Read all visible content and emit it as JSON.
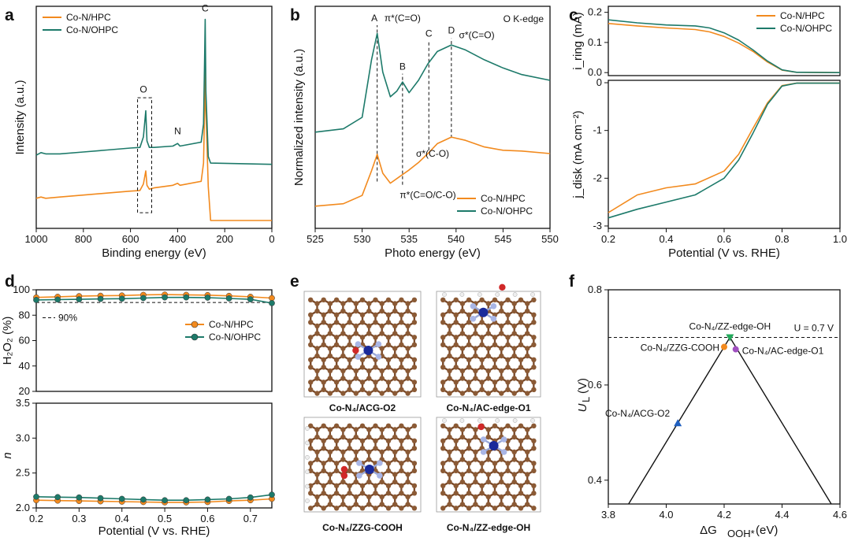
{
  "colors": {
    "hpc": "#f28a1e",
    "ohpc": "#1d7a6a",
    "acg": "#2060c0",
    "zzcooh": "#f28a1e",
    "zzoh": "#22a85a",
    "ac": "#a050c0"
  },
  "chart_data": [
    {
      "panel": "a",
      "type": "line",
      "xlabel": "Binding energy (eV)",
      "ylabel": "Intensity (a.u.)",
      "xlim": [
        1000,
        0
      ],
      "xticks": [
        "1000",
        "800",
        "600",
        "400",
        "200",
        "0"
      ],
      "legend": "top-left",
      "annotations": [
        "O",
        "N",
        "C"
      ],
      "series": [
        {
          "name": "Co-N/HPC",
          "x": [
            1000,
            980,
            960,
            900,
            800,
            700,
            600,
            560,
            545,
            535,
            530,
            520,
            500,
            420,
            400,
            390,
            300,
            290,
            285,
            283,
            280,
            270,
            260,
            0
          ],
          "y": [
            0.23,
            0.24,
            0.23,
            0.24,
            0.255,
            0.27,
            0.285,
            0.29,
            0.34,
            0.44,
            0.33,
            0.3,
            0.31,
            0.33,
            0.345,
            0.33,
            0.36,
            0.5,
            0.95,
            1.22,
            0.9,
            0.32,
            0.06,
            0.06
          ]
        },
        {
          "name": "Co-N/OHPC",
          "x": [
            1000,
            980,
            960,
            900,
            800,
            700,
            600,
            560,
            545,
            535,
            530,
            520,
            500,
            420,
            400,
            390,
            300,
            290,
            285,
            283,
            280,
            270,
            260,
            0
          ],
          "y": [
            0.56,
            0.58,
            0.57,
            0.57,
            0.585,
            0.6,
            0.615,
            0.62,
            0.7,
            0.9,
            0.67,
            0.62,
            0.62,
            0.63,
            0.65,
            0.63,
            0.66,
            0.8,
            1.35,
            1.6,
            1.05,
            0.55,
            0.5,
            0.49
          ]
        }
      ]
    },
    {
      "panel": "b",
      "type": "line",
      "xlabel": "Photo energy (eV)",
      "ylabel": "Normalized intensity (a.u.)",
      "xlim": [
        525,
        550
      ],
      "xticks": [
        "525",
        "530",
        "535",
        "540",
        "545",
        "550"
      ],
      "legend": "bottom-right",
      "annotations": [
        "A",
        "π*(C=O)",
        "B",
        "C",
        "D",
        "σ*(C=O)",
        "σ*(C-O)",
        "π*(C=O/C-O)",
        "O K-edge"
      ],
      "series": [
        {
          "name": "Co-N/HPC",
          "x": [
            525,
            528,
            530,
            531,
            531.6,
            532.2,
            533,
            534,
            535,
            536,
            537,
            538,
            539.5,
            541,
            543,
            545,
            547,
            550
          ],
          "y": [
            0.02,
            0.05,
            0.15,
            0.45,
            0.65,
            0.42,
            0.3,
            0.38,
            0.46,
            0.55,
            0.66,
            0.78,
            0.86,
            0.82,
            0.74,
            0.7,
            0.69,
            0.66
          ]
        },
        {
          "name": "Co-N/OHPC",
          "x": [
            525,
            528,
            530,
            531,
            531.6,
            532.2,
            533,
            533.7,
            534.3,
            535,
            536,
            537,
            538,
            539.5,
            541,
            543,
            545,
            547,
            550
          ],
          "y": [
            0.92,
            0.96,
            1.1,
            1.8,
            2.12,
            1.65,
            1.35,
            1.42,
            1.53,
            1.4,
            1.55,
            1.75,
            1.9,
            1.98,
            1.92,
            1.8,
            1.7,
            1.62,
            1.55
          ]
        }
      ]
    },
    {
      "panel": "c-top",
      "type": "line",
      "ylabel": "i_ring (mA)",
      "xlim": [
        0.2,
        1.0
      ],
      "ylim": [
        0,
        0.2
      ],
      "yticks": [
        "0.0",
        "0.1",
        "0.2"
      ],
      "legend": "top-right",
      "series": [
        {
          "name": "Co-N/HPC",
          "x": [
            0.2,
            0.3,
            0.4,
            0.5,
            0.55,
            0.6,
            0.65,
            0.7,
            0.75,
            0.8,
            0.85,
            1.0
          ],
          "y": [
            0.163,
            0.155,
            0.148,
            0.143,
            0.135,
            0.12,
            0.098,
            0.07,
            0.035,
            0.008,
            0.001,
            0.0
          ]
        },
        {
          "name": "Co-N/OHPC",
          "x": [
            0.2,
            0.3,
            0.4,
            0.5,
            0.55,
            0.6,
            0.65,
            0.7,
            0.75,
            0.8,
            0.85,
            1.0
          ],
          "y": [
            0.175,
            0.165,
            0.158,
            0.155,
            0.148,
            0.132,
            0.108,
            0.075,
            0.038,
            0.009,
            0.001,
            0.0
          ]
        }
      ]
    },
    {
      "panel": "c-bottom",
      "type": "line",
      "xlabel": "Potential (V vs. RHE)",
      "ylabel": "j_disk (mA cm⁻²)",
      "xlim": [
        0.2,
        1.0
      ],
      "ylim": [
        -3,
        0
      ],
      "xticks": [
        "0.2",
        "0.4",
        "0.6",
        "0.8",
        "1.0"
      ],
      "yticks": [
        "0",
        "-1",
        "-2",
        "-3"
      ],
      "series": [
        {
          "name": "Co-N/HPC",
          "x": [
            0.2,
            0.3,
            0.4,
            0.5,
            0.6,
            0.65,
            0.7,
            0.75,
            0.8,
            0.85,
            1.0
          ],
          "y": [
            -2.72,
            -2.35,
            -2.2,
            -2.12,
            -1.85,
            -1.5,
            -0.95,
            -0.42,
            -0.06,
            -0.01,
            -0.01
          ]
        },
        {
          "name": "Co-N/OHPC",
          "x": [
            0.2,
            0.3,
            0.4,
            0.5,
            0.6,
            0.65,
            0.7,
            0.75,
            0.8,
            0.85,
            1.0
          ],
          "y": [
            -2.83,
            -2.65,
            -2.5,
            -2.35,
            -2.0,
            -1.62,
            -1.05,
            -0.45,
            -0.07,
            -0.01,
            -0.01
          ]
        }
      ]
    },
    {
      "panel": "d-top",
      "type": "line",
      "ylabel": "H₂O₂ (%)",
      "xlim": [
        0.2,
        0.75
      ],
      "ylim": [
        20,
        100
      ],
      "yticks": [
        "20",
        "40",
        "60",
        "80",
        "100"
      ],
      "legend": "middle-right",
      "annotations": [
        "90%"
      ],
      "reference_line": 90,
      "series": [
        {
          "name": "Co-N/HPC",
          "x": [
            0.2,
            0.25,
            0.3,
            0.35,
            0.4,
            0.45,
            0.5,
            0.55,
            0.6,
            0.65,
            0.7,
            0.75
          ],
          "y": [
            94,
            94.5,
            95,
            95.3,
            95.5,
            96,
            96.2,
            96,
            95.8,
            95.2,
            94.5,
            93.5
          ]
        },
        {
          "name": "Co-N/OHPC",
          "x": [
            0.2,
            0.25,
            0.3,
            0.35,
            0.4,
            0.45,
            0.5,
            0.55,
            0.6,
            0.65,
            0.7,
            0.75
          ],
          "y": [
            92,
            92.3,
            92.5,
            92.8,
            93,
            93.5,
            94,
            94,
            93.8,
            93.2,
            92.5,
            89.5
          ]
        }
      ]
    },
    {
      "panel": "d-bottom",
      "type": "line",
      "xlabel": "Potential (V vs. RHE)",
      "ylabel": "n",
      "xlim": [
        0.2,
        0.75
      ],
      "ylim": [
        2.0,
        3.5
      ],
      "xticks": [
        "0.2",
        "0.3",
        "0.4",
        "0.5",
        "0.6",
        "0.7"
      ],
      "yticks": [
        "2.0",
        "2.5",
        "3.0",
        "3.5"
      ],
      "series": [
        {
          "name": "Co-N/HPC",
          "x": [
            0.2,
            0.25,
            0.3,
            0.35,
            0.4,
            0.45,
            0.5,
            0.55,
            0.6,
            0.65,
            0.7,
            0.75
          ],
          "y": [
            2.11,
            2.105,
            2.1,
            2.095,
            2.09,
            2.085,
            2.08,
            2.08,
            2.085,
            2.1,
            2.11,
            2.13
          ]
        },
        {
          "name": "Co-N/OHPC",
          "x": [
            0.2,
            0.25,
            0.3,
            0.35,
            0.4,
            0.45,
            0.5,
            0.55,
            0.6,
            0.65,
            0.7,
            0.75
          ],
          "y": [
            2.16,
            2.155,
            2.15,
            2.14,
            2.13,
            2.12,
            2.11,
            2.11,
            2.12,
            2.13,
            2.15,
            2.19
          ]
        }
      ]
    },
    {
      "panel": "f",
      "type": "scatter",
      "xlabel": "ΔG",
      "xlabel_sub": "OOH*",
      "xlabel_tail": "(eV)",
      "ylabel": "U",
      "ylabel_sub": "L",
      "ylabel_tail": "(V)",
      "xlim": [
        3.8,
        4.6
      ],
      "ylim": [
        0.35,
        0.8
      ],
      "xticks": [
        "3.8",
        "4.0",
        "4.2",
        "4.4",
        "4.6"
      ],
      "yticks": [
        "0.4",
        "0.6",
        "0.8"
      ],
      "reference_label": "U = 0.7 V",
      "reference_line": 0.7,
      "volcano_peak": [
        4.22,
        0.7
      ],
      "volcano_ends": [
        [
          3.87,
          0.35
        ],
        [
          4.57,
          0.35
        ]
      ],
      "points": [
        {
          "label": "Co-N₄/ACG-O2",
          "x": 4.04,
          "y": 0.52
        },
        {
          "label": "Co-N₄/ZZG-COOH",
          "x": 4.2,
          "y": 0.68
        },
        {
          "label": "Co-N₄/ZZ-edge-OH",
          "x": 4.22,
          "y": 0.7
        },
        {
          "label": "Co-N₄/AC-edge-O1",
          "x": 4.24,
          "y": 0.675
        }
      ]
    }
  ],
  "panel_labels": {
    "a": "a",
    "b": "b",
    "c": "c",
    "d": "d",
    "e": "e",
    "f": "f"
  },
  "panel_e": {
    "structures": [
      "Co-N₄/ACG-O2",
      "Co-N₄/AC-edge-O1",
      "Co-N₄/ZZG-COOH",
      "Co-N₄/ZZ-edge-OH"
    ]
  }
}
